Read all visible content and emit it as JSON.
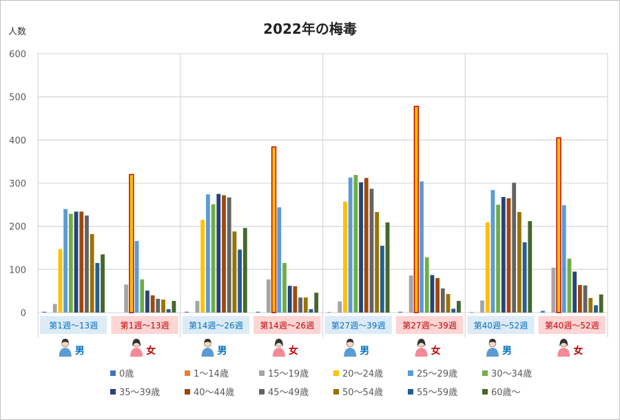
{
  "chart_data": {
    "type": "bar",
    "title": "2022年の梅毒",
    "ylabel": "人数",
    "ylim": [
      0,
      600
    ],
    "yticks": [
      0,
      100,
      200,
      300,
      400,
      500,
      600
    ],
    "grid": true,
    "legend_position": "bottom",
    "categories": [
      "第1週〜13週",
      "第1週〜13週",
      "第14週〜26週",
      "第14週〜26週",
      "第27週〜39週",
      "第27週〜39週",
      "第40週〜52週",
      "第40週〜52週"
    ],
    "genders": [
      "男",
      "女",
      "男",
      "女",
      "男",
      "女",
      "男",
      "女"
    ],
    "series": [
      {
        "name": "0歳",
        "color": "#4472c4",
        "values": [
          2,
          0,
          2,
          2,
          1,
          2,
          1,
          4
        ]
      },
      {
        "name": "1〜14歳",
        "color": "#ed7d31",
        "values": [
          0,
          0,
          0,
          0,
          0,
          0,
          0,
          0
        ]
      },
      {
        "name": "15〜19歳",
        "color": "#a5a5a5",
        "values": [
          20,
          65,
          27,
          77,
          26,
          86,
          28,
          104
        ]
      },
      {
        "name": "20〜24歳",
        "color": "#ffc000",
        "values": [
          147,
          320,
          215,
          384,
          257,
          478,
          209,
          405
        ]
      },
      {
        "name": "25〜29歳",
        "color": "#5b9bd5",
        "values": [
          240,
          166,
          274,
          244,
          313,
          304,
          284,
          249
        ]
      },
      {
        "name": "30〜34歳",
        "color": "#70ad47",
        "values": [
          229,
          77,
          251,
          115,
          319,
          128,
          250,
          125
        ]
      },
      {
        "name": "35〜39歳",
        "color": "#264478",
        "values": [
          234,
          51,
          275,
          62,
          302,
          87,
          268,
          95
        ]
      },
      {
        "name": "40〜44歳",
        "color": "#9e480e",
        "values": [
          234,
          40,
          272,
          61,
          312,
          80,
          265,
          64
        ]
      },
      {
        "name": "45〜49歳",
        "color": "#636363",
        "values": [
          225,
          32,
          267,
          35,
          287,
          56,
          301,
          63
        ]
      },
      {
        "name": "50〜54歳",
        "color": "#997300",
        "values": [
          182,
          30,
          188,
          35,
          233,
          43,
          233,
          34
        ]
      },
      {
        "name": "55〜59歳",
        "color": "#255e91",
        "values": [
          115,
          8,
          146,
          8,
          155,
          9,
          163,
          17
        ]
      },
      {
        "name": "60歳〜",
        "color": "#43682b",
        "values": [
          135,
          27,
          196,
          46,
          209,
          27,
          212,
          42
        ]
      }
    ],
    "highlight_series": "20〜24歳",
    "highlight_groups": "女"
  },
  "colors": {
    "male_label_bg": "#ddebf7",
    "female_label_bg": "#fcd5d4",
    "male_text": "#0070c0",
    "female_text": "#c00000",
    "male_icon": "#5b9bd5",
    "female_icon": "#f48a96",
    "gridline": "#d9d9d9",
    "highlight_outline": "#c00000"
  },
  "icons": {
    "male": "male-person-icon",
    "female": "female-person-icon"
  }
}
